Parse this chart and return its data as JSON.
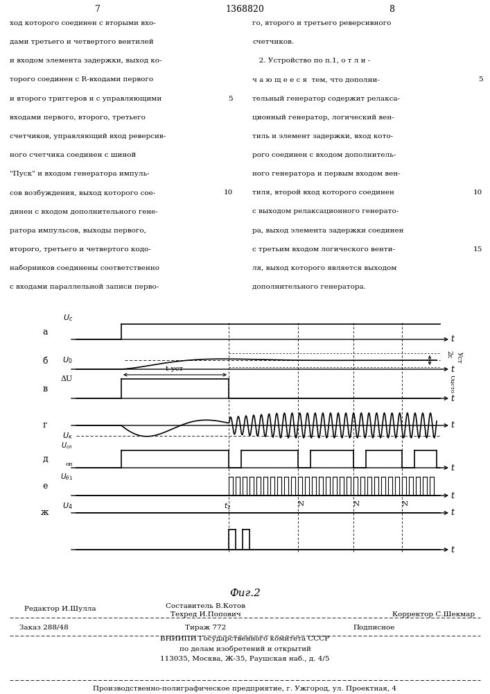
{
  "page_left": "7",
  "page_center": "1368820",
  "page_right": "8",
  "fig_label": "Фиг.2",
  "text_left_lines": [
    "ход которого соединен с вторыми вхо-",
    "дами третьего и четвертого вентилей",
    "и входом элемента задержки, выход ко-",
    "торого соединен с R-входами первого",
    "и второго триггеров и с управляющими",
    "входами первого, второго, третьего",
    "счетчиков, управляющий вход реверсив-",
    "ного счетчика соединен с шиной",
    "\"Пуск\" и входом генератора импуль-",
    "сов возбуждения, выход которого сое-",
    "динен с входом дополнительного гене-",
    "ратора импульсов, выходы первого,",
    "второго, третьего и четвертого кодо-",
    "наборников соединены соответственно",
    "с входами параллельной записи перво-"
  ],
  "text_left_linenum": [
    0,
    0,
    0,
    0,
    5,
    0,
    0,
    0,
    0,
    10,
    0,
    0,
    0,
    0,
    0
  ],
  "text_right_lines": [
    "го, второго и третьего реверсивного",
    "счетчиков.",
    "   2. Устройство по п.1, о т л и -",
    "ч а ю щ е е с я  тем, что дополни-",
    "тельный генератор содержит релакса-",
    "ционный генератор, логический вен-",
    "тиль и элемент задержки, вход кото-",
    "рого соединен с входом дополнитель-",
    "ного генератора и первым входом вен-",
    "тиля, второй вход которого соединен",
    "с выходом релаксационного генерато-",
    "ра, выход элемента задержки соединен",
    "с третьим входом логического венти-",
    "ля, выход которого является выходом",
    "дополнительного генератора."
  ],
  "text_right_linenum": [
    0,
    0,
    0,
    5,
    0,
    0,
    0,
    0,
    0,
    10,
    0,
    0,
    15,
    0,
    0
  ],
  "footer_editor": "Редактор И.Шулла",
  "footer_compiler": "Составитель В.Котов",
  "footer_techred": "Техред И.Попович",
  "footer_corrector": "Корректор С.Шекмар",
  "footer_order": "Заказ 288/48",
  "footer_circulation": "Тираж 772",
  "footer_subscription": "Подписное",
  "footer_vniip": "ВНИИПИ Государственного комитета СССР",
  "footer_affairs": "по делам изобретений и открытий",
  "footer_address": "113035, Москва, Ж-35, Раушская наб., д. 4/5",
  "footer_enterprise": "Производственно-полиграфическое предприятие, г. Ужгород, ул. Проектная, 4"
}
